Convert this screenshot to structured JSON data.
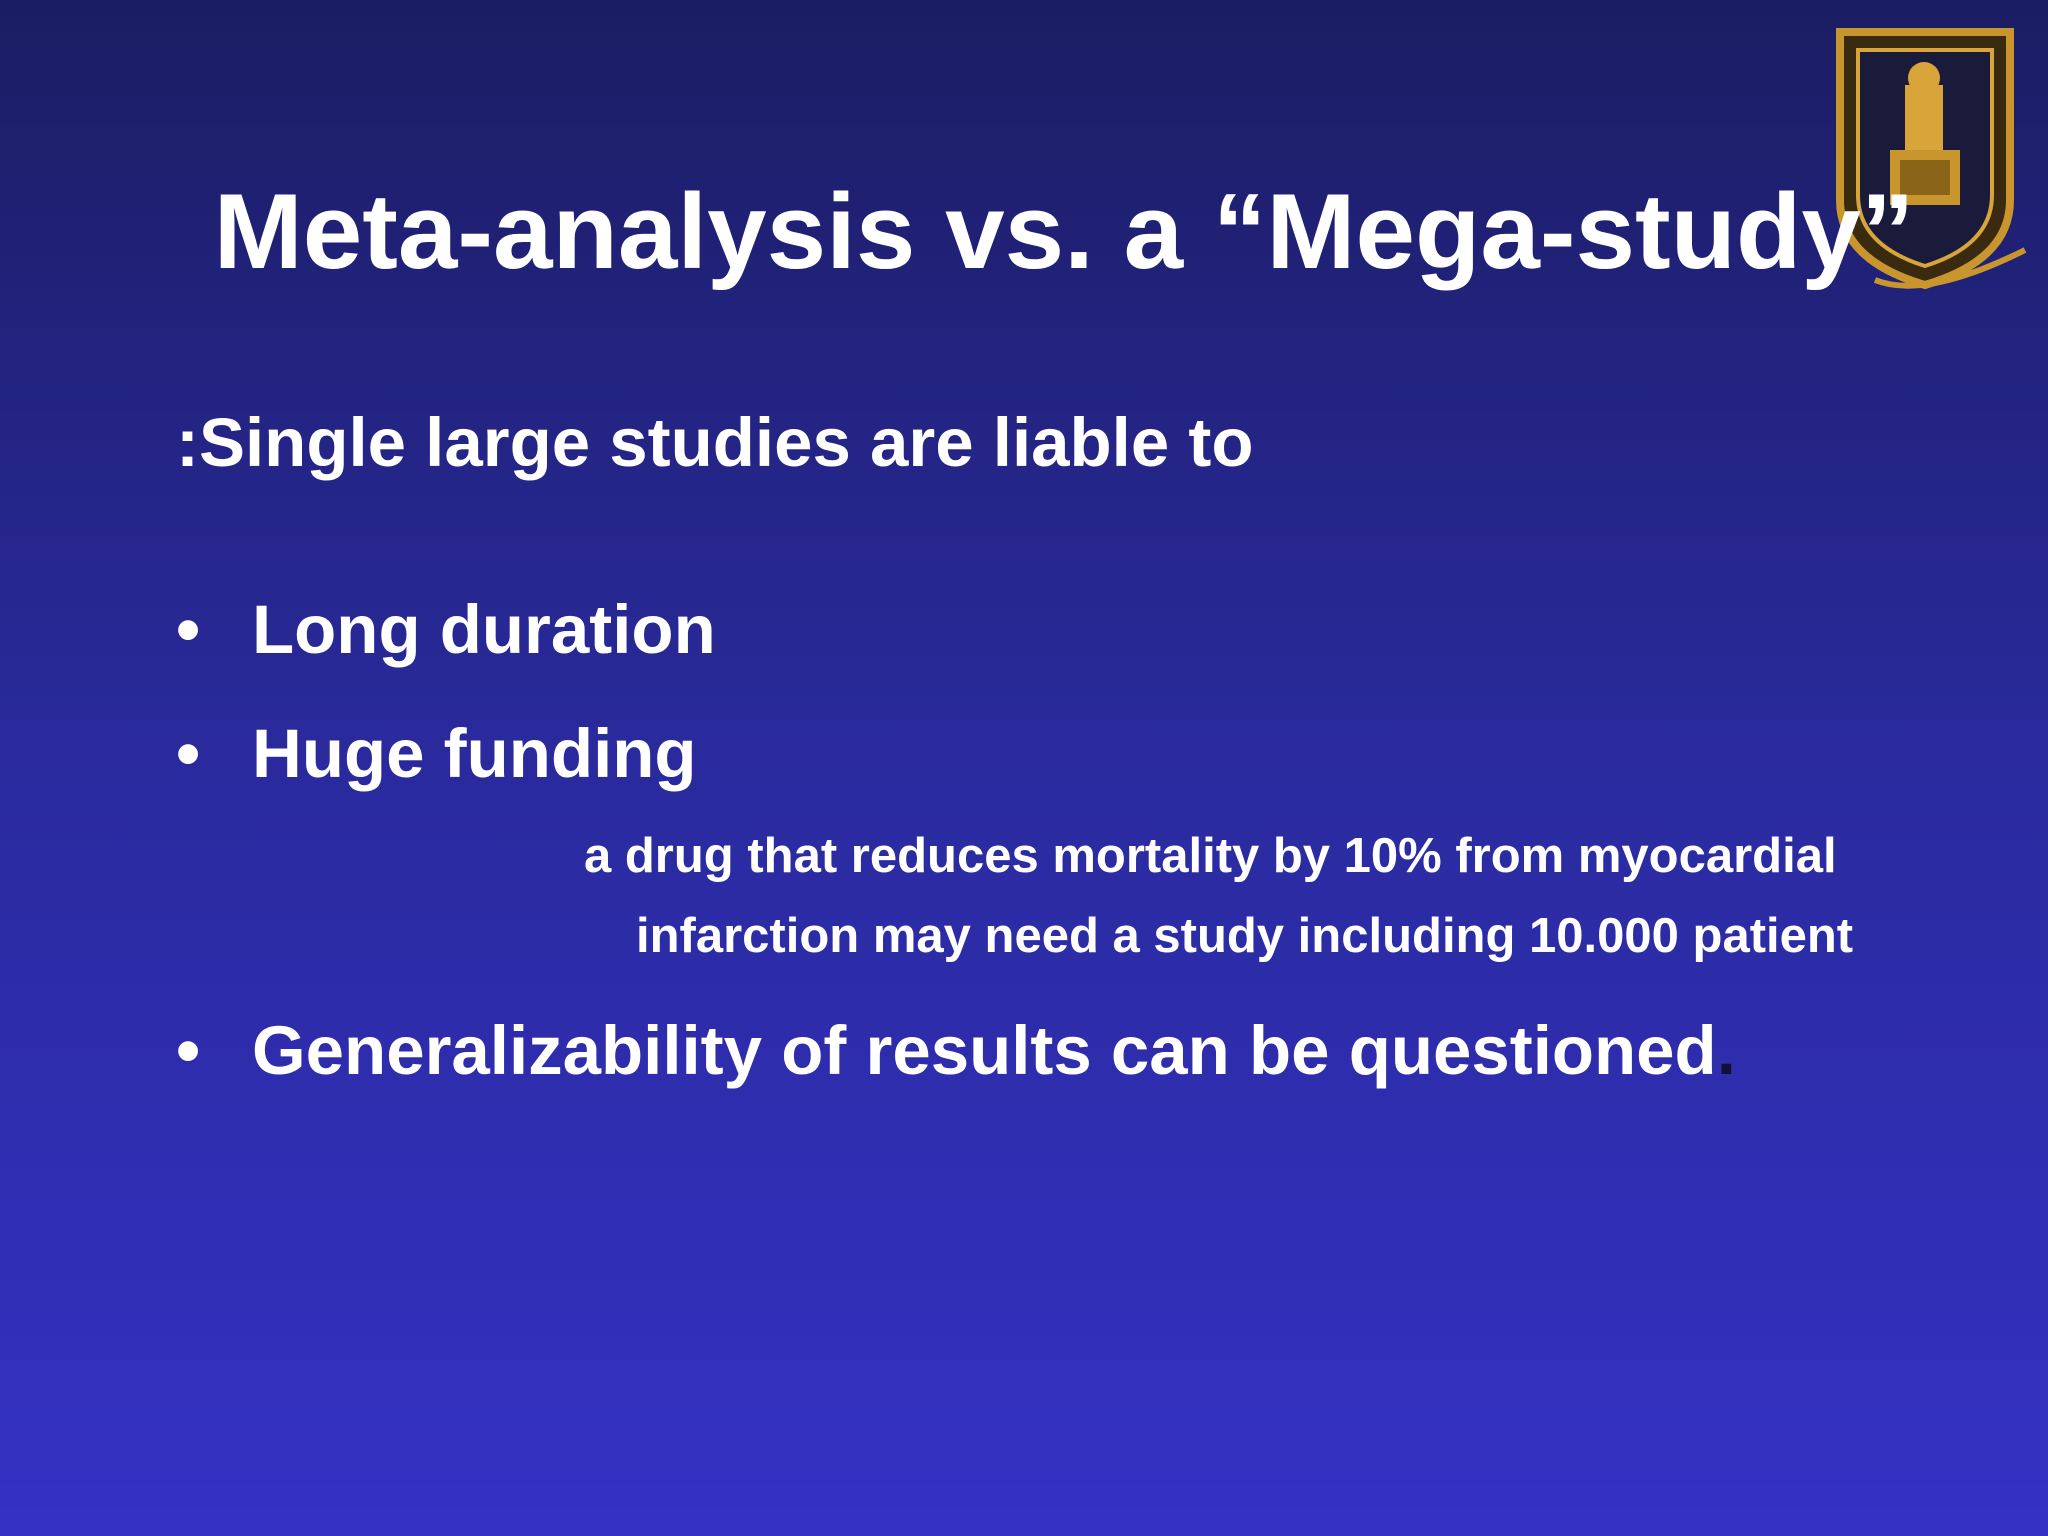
{
  "slide": {
    "title": "Meta-analysis vs. a “Mega-study”",
    "intro": ":Single large studies are liable to",
    "bullets": [
      "Long duration",
      "Huge funding"
    ],
    "note_lines": [
      "a drug that reduces mortality by 10% from myocardial",
      "infarction may need a study including 10.000 patient"
    ],
    "last_bullet": {
      "text": "Generalizability of results can be questioned",
      "trailing": "."
    }
  }
}
